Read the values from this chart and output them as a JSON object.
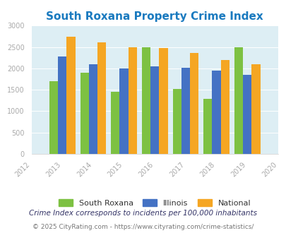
{
  "title": "South Roxana Property Crime Index",
  "years": [
    2013,
    2014,
    2015,
    2016,
    2017,
    2018,
    2019
  ],
  "south_roxana": [
    1700,
    1900,
    1450,
    2490,
    1520,
    1290,
    2490
  ],
  "illinois": [
    2280,
    2090,
    2000,
    2050,
    2010,
    1950,
    1850
  ],
  "national": [
    2740,
    2610,
    2500,
    2470,
    2360,
    2190,
    2100
  ],
  "colors": {
    "south_roxana": "#7dc142",
    "illinois": "#4472c4",
    "national": "#f5a623"
  },
  "xlim": [
    2012,
    2020
  ],
  "ylim": [
    0,
    3000
  ],
  "yticks": [
    0,
    500,
    1000,
    1500,
    2000,
    2500,
    3000
  ],
  "background_color": "#ddeef4",
  "title_color": "#1a7abf",
  "tick_color": "#aaaaaa",
  "legend_labels": [
    "South Roxana",
    "Illinois",
    "National"
  ],
  "footnote1": "Crime Index corresponds to incidents per 100,000 inhabitants",
  "footnote2": "© 2025 CityRating.com - https://www.cityrating.com/crime-statistics/",
  "footnote_color": "#777777",
  "title_fontsize": 11,
  "bar_width": 0.28
}
